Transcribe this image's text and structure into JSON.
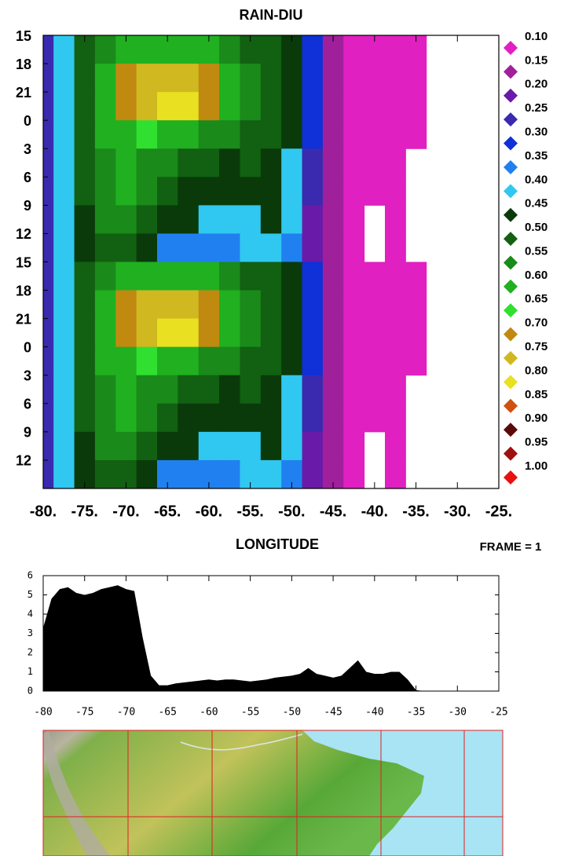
{
  "chart_data": [
    {
      "type": "contour",
      "title": "RAIN-DIU",
      "xlabel": "LONGITUDE",
      "annotation": "FRAME = 1",
      "x": [
        -80,
        -77.5,
        -75,
        -72.5,
        -70,
        -67.5,
        -65,
        -62.5,
        -60,
        -57.5,
        -55,
        -52.5,
        -50,
        -47.5,
        -45,
        -42.5,
        -40,
        -37.5,
        -35,
        -32.5
      ],
      "categories": [
        "15",
        "18",
        "21",
        "0",
        "3",
        "6",
        "9",
        "12",
        "15",
        "18",
        "21",
        "0",
        "3",
        "6",
        "9",
        "12"
      ],
      "z": [
        [
          0.25,
          0.4,
          0.5,
          0.58,
          0.62,
          0.64,
          0.63,
          0.62,
          0.6,
          0.55,
          0.52,
          0.5,
          0.45,
          0.3,
          0.18,
          0.12,
          0.11,
          0.11,
          0.11,
          0.05
        ],
        [
          0.25,
          0.4,
          0.52,
          0.62,
          0.72,
          0.76,
          0.78,
          0.78,
          0.74,
          0.6,
          0.55,
          0.52,
          0.46,
          0.3,
          0.18,
          0.12,
          0.11,
          0.11,
          0.11,
          0.05
        ],
        [
          0.25,
          0.4,
          0.52,
          0.62,
          0.72,
          0.76,
          0.8,
          0.8,
          0.72,
          0.6,
          0.56,
          0.52,
          0.46,
          0.3,
          0.18,
          0.12,
          0.11,
          0.11,
          0.11,
          0.05
        ],
        [
          0.25,
          0.4,
          0.52,
          0.6,
          0.64,
          0.65,
          0.64,
          0.62,
          0.58,
          0.55,
          0.54,
          0.5,
          0.45,
          0.3,
          0.18,
          0.12,
          0.11,
          0.11,
          0.11,
          0.05
        ],
        [
          0.25,
          0.4,
          0.52,
          0.58,
          0.6,
          0.58,
          0.55,
          0.52,
          0.5,
          0.48,
          0.5,
          0.48,
          0.44,
          0.28,
          0.16,
          0.12,
          0.11,
          0.11,
          0.08,
          0.04
        ],
        [
          0.25,
          0.4,
          0.5,
          0.58,
          0.64,
          0.58,
          0.52,
          0.48,
          0.46,
          0.45,
          0.46,
          0.46,
          0.42,
          0.25,
          0.15,
          0.12,
          0.11,
          0.11,
          0.08,
          0.04
        ],
        [
          0.25,
          0.4,
          0.48,
          0.56,
          0.58,
          0.54,
          0.48,
          0.45,
          0.42,
          0.4,
          0.44,
          0.45,
          0.4,
          0.22,
          0.15,
          0.12,
          0.09,
          0.11,
          0.09,
          0.04
        ],
        [
          0.25,
          0.4,
          0.47,
          0.52,
          0.5,
          0.46,
          0.38,
          0.36,
          0.38,
          0.36,
          0.4,
          0.42,
          0.38,
          0.22,
          0.15,
          0.12,
          0.09,
          0.11,
          0.09,
          0.04
        ],
        [
          0.25,
          0.4,
          0.5,
          0.58,
          0.62,
          0.64,
          0.63,
          0.62,
          0.6,
          0.55,
          0.52,
          0.5,
          0.45,
          0.3,
          0.18,
          0.12,
          0.11,
          0.11,
          0.11,
          0.05
        ],
        [
          0.25,
          0.4,
          0.52,
          0.62,
          0.72,
          0.76,
          0.78,
          0.78,
          0.74,
          0.6,
          0.55,
          0.52,
          0.46,
          0.3,
          0.18,
          0.12,
          0.11,
          0.11,
          0.11,
          0.05
        ],
        [
          0.25,
          0.4,
          0.52,
          0.62,
          0.72,
          0.76,
          0.8,
          0.8,
          0.72,
          0.6,
          0.56,
          0.52,
          0.46,
          0.3,
          0.18,
          0.12,
          0.11,
          0.11,
          0.11,
          0.05
        ],
        [
          0.25,
          0.4,
          0.52,
          0.6,
          0.64,
          0.65,
          0.64,
          0.62,
          0.58,
          0.55,
          0.54,
          0.5,
          0.45,
          0.3,
          0.18,
          0.12,
          0.11,
          0.11,
          0.11,
          0.05
        ],
        [
          0.25,
          0.4,
          0.52,
          0.58,
          0.6,
          0.58,
          0.55,
          0.52,
          0.5,
          0.48,
          0.5,
          0.48,
          0.44,
          0.28,
          0.16,
          0.12,
          0.11,
          0.11,
          0.08,
          0.04
        ],
        [
          0.25,
          0.4,
          0.5,
          0.58,
          0.64,
          0.58,
          0.52,
          0.48,
          0.46,
          0.45,
          0.46,
          0.46,
          0.42,
          0.25,
          0.15,
          0.12,
          0.11,
          0.11,
          0.08,
          0.04
        ],
        [
          0.25,
          0.4,
          0.48,
          0.56,
          0.58,
          0.54,
          0.48,
          0.45,
          0.42,
          0.4,
          0.44,
          0.45,
          0.4,
          0.22,
          0.15,
          0.12,
          0.09,
          0.11,
          0.09,
          0.04
        ],
        [
          0.25,
          0.4,
          0.47,
          0.52,
          0.5,
          0.46,
          0.38,
          0.36,
          0.38,
          0.36,
          0.4,
          0.42,
          0.38,
          0.22,
          0.15,
          0.12,
          0.09,
          0.11,
          0.09,
          0.04
        ]
      ],
      "xlim": [
        -80,
        -25
      ],
      "xticks": [
        {
          "value": -80,
          "label": "-80."
        },
        {
          "value": -75,
          "label": "-75."
        },
        {
          "value": -70,
          "label": "-70."
        },
        {
          "value": -65,
          "label": "-65."
        },
        {
          "value": -60,
          "label": "-60."
        },
        {
          "value": -55,
          "label": "-55."
        },
        {
          "value": -50,
          "label": "-50."
        },
        {
          "value": -45,
          "label": "-45."
        },
        {
          "value": -40,
          "label": "-40."
        },
        {
          "value": -35,
          "label": "-35."
        },
        {
          "value": -30,
          "label": "-30."
        },
        {
          "value": -25,
          "label": "-25."
        }
      ],
      "levels": [
        {
          "value": 0.1,
          "label": "0.10"
        },
        {
          "value": 0.15,
          "label": "0.15"
        },
        {
          "value": 0.2,
          "label": "0.20"
        },
        {
          "value": 0.25,
          "label": "0.25"
        },
        {
          "value": 0.3,
          "label": "0.30"
        },
        {
          "value": 0.35,
          "label": "0.35"
        },
        {
          "value": 0.4,
          "label": "0.40"
        },
        {
          "value": 0.45,
          "label": "0.45"
        },
        {
          "value": 0.5,
          "label": "0.50"
        },
        {
          "value": 0.55,
          "label": "0.55"
        },
        {
          "value": 0.6,
          "label": "0.60"
        },
        {
          "value": 0.65,
          "label": "0.65"
        },
        {
          "value": 0.7,
          "label": "0.70"
        },
        {
          "value": 0.75,
          "label": "0.75"
        },
        {
          "value": 0.8,
          "label": "0.80"
        },
        {
          "value": 0.85,
          "label": "0.85"
        },
        {
          "value": 0.9,
          "label": "0.90"
        },
        {
          "value": 0.95,
          "label": "0.95"
        },
        {
          "value": 1,
          "label": "1.00"
        }
      ],
      "colors": [
        "#e020c0",
        "#a0209c",
        "#6a1aa8",
        "#3a2ab0",
        "#1030d8",
        "#2080f0",
        "#30c8f0",
        "#0a3a0a",
        "#126012",
        "#1a8a1a",
        "#20b020",
        "#30e030",
        "#c08a10",
        "#d0b820",
        "#e8e020",
        "#d05010",
        "#5a0a0a",
        "#a01010",
        "#e81010"
      ]
    },
    {
      "type": "area",
      "x": [
        -80,
        -79,
        -78,
        -77,
        -76,
        -75,
        -74,
        -73,
        -72,
        -71,
        -70,
        -69,
        -68,
        -67,
        -66,
        -65,
        -64,
        -63,
        -62,
        -61,
        -60,
        -59,
        -58,
        -57,
        -56,
        -55,
        -54,
        -53,
        -52,
        -51,
        -50,
        -49,
        -48,
        -47,
        -46,
        -45,
        -44,
        -43,
        -42,
        -41,
        -40,
        -39,
        -38,
        -37,
        -36,
        -35,
        -34
      ],
      "values": [
        3.3,
        4.8,
        5.3,
        5.4,
        5.1,
        5.0,
        5.1,
        5.3,
        5.4,
        5.5,
        5.3,
        5.2,
        2.8,
        0.8,
        0.3,
        0.3,
        0.4,
        0.45,
        0.5,
        0.55,
        0.6,
        0.55,
        0.6,
        0.6,
        0.55,
        0.5,
        0.55,
        0.6,
        0.7,
        0.75,
        0.8,
        0.9,
        1.2,
        0.9,
        0.8,
        0.7,
        0.8,
        1.2,
        1.6,
        1.0,
        0.9,
        0.9,
        1.0,
        1.0,
        0.6,
        0.05,
        0
      ],
      "color": "#000000",
      "xlim": [
        -80,
        -25
      ],
      "ylim": [
        0,
        6
      ],
      "xticks": [
        -80,
        -75,
        -70,
        -65,
        -60,
        -55,
        -50,
        -45,
        -40,
        -35,
        -30,
        -25
      ],
      "yticks": [
        0,
        1,
        2,
        3,
        4,
        5,
        6
      ]
    }
  ]
}
